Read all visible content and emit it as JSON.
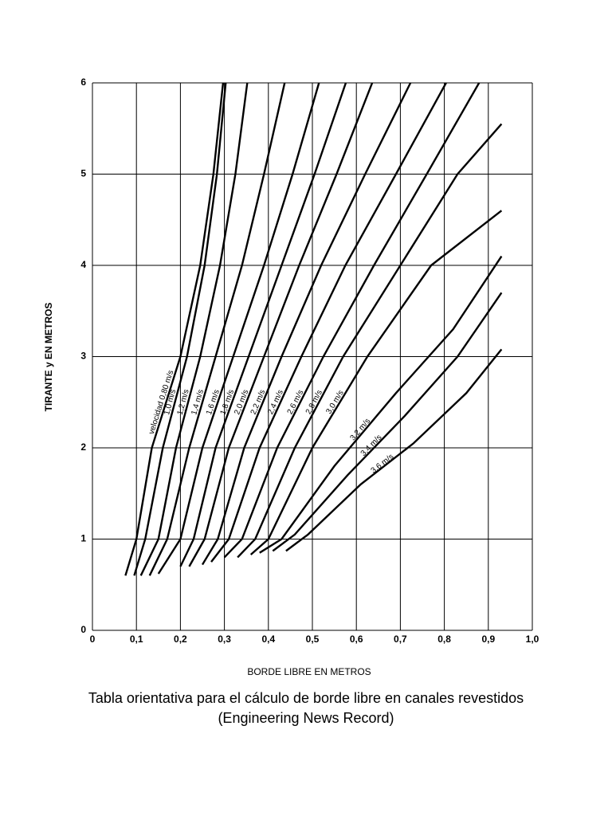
{
  "chart_data": {
    "type": "line",
    "x_label": "BORDE LIBRE EN METROS",
    "y_label": "TIRANTE  y  EN METROS",
    "caption": "Tabla orientativa para el cálculo de borde libre en canales revestidos",
    "source": "(Engineering News Record)",
    "xlim": [
      0,
      1.0
    ],
    "ylim": [
      0,
      6
    ],
    "xticks": [
      0,
      {
        "value": 0.1,
        "label": "0,1"
      },
      {
        "value": 0.2,
        "label": "0,2"
      },
      {
        "value": 0.3,
        "label": "0,3"
      },
      {
        "value": 0.4,
        "label": "0,4"
      },
      {
        "value": 0.5,
        "label": "0,5"
      },
      {
        "value": 0.6,
        "label": "0,6"
      },
      {
        "value": 0.7,
        "label": "0,7"
      },
      {
        "value": 0.8,
        "label": "0,8"
      },
      {
        "value": 0.9,
        "label": "0,9"
      },
      {
        "value": 1.0,
        "label": "1,0"
      }
    ],
    "yticks": [
      0,
      1,
      2,
      3,
      4,
      5,
      6
    ],
    "grid": true,
    "series": [
      {
        "name": "velocidad 0,80 m/s",
        "color": "#000000",
        "x": [
          0.075,
          0.1,
          0.135,
          0.2,
          0.245,
          0.275,
          0.297
        ],
        "values": [
          0.6,
          1,
          2,
          3,
          4,
          5,
          6
        ]
      },
      {
        "name": "1,0 m/s",
        "color": "#000000",
        "x": [
          0.095,
          0.12,
          0.16,
          0.215,
          0.255,
          0.283,
          0.303
        ],
        "values": [
          0.6,
          1,
          2,
          3,
          4,
          5,
          6
        ]
      },
      {
        "name": "1,2 m/s",
        "color": "#000000",
        "x": [
          0.11,
          0.15,
          0.19,
          0.245,
          0.29,
          0.325,
          0.352
        ],
        "values": [
          0.6,
          1,
          2,
          3,
          4,
          5,
          6
        ]
      },
      {
        "name": "1,4 m/s",
        "color": "#000000",
        "x": [
          0.13,
          0.17,
          0.22,
          0.28,
          0.34,
          0.39,
          0.437
        ],
        "values": [
          0.6,
          1,
          2,
          3,
          4,
          5,
          6
        ]
      },
      {
        "name": "1,6 m/s",
        "color": "#000000",
        "x": [
          0.15,
          0.2,
          0.25,
          0.32,
          0.39,
          0.455,
          0.515
        ],
        "values": [
          0.62,
          1,
          2,
          3,
          4,
          5,
          6
        ]
      },
      {
        "name": "1,8 m/s",
        "color": "#000000",
        "x": [
          0.2,
          0.23,
          0.28,
          0.355,
          0.43,
          0.505,
          0.576
        ],
        "values": [
          0.7,
          1,
          2,
          3,
          4,
          5,
          6
        ]
      },
      {
        "name": "2,0 m/s",
        "color": "#000000",
        "x": [
          0.22,
          0.255,
          0.31,
          0.39,
          0.47,
          0.555,
          0.636
        ],
        "values": [
          0.7,
          1,
          2,
          3,
          4,
          5,
          6
        ]
      },
      {
        "name": "2,2 m/s",
        "color": "#000000",
        "x": [
          0.25,
          0.285,
          0.345,
          0.43,
          0.52,
          0.62,
          0.723
        ],
        "values": [
          0.72,
          1,
          2,
          3,
          4,
          5,
          6
        ]
      },
      {
        "name": "2,4 m/s",
        "color": "#000000",
        "x": [
          0.27,
          0.31,
          0.38,
          0.475,
          0.575,
          0.69,
          0.804
        ],
        "values": [
          0.75,
          1,
          2,
          3,
          4,
          5,
          6
        ]
      },
      {
        "name": "2,6 m/s",
        "color": "#000000",
        "x": [
          0.3,
          0.34,
          0.42,
          0.525,
          0.64,
          0.76,
          0.879
        ],
        "values": [
          0.8,
          1,
          2,
          3,
          4,
          5,
          6
        ]
      },
      {
        "name": "2,8 m/s",
        "color": "#000000",
        "x": [
          0.33,
          0.37,
          0.46,
          0.57,
          0.7,
          0.83,
          0.93
        ],
        "values": [
          0.8,
          1,
          2,
          3,
          4,
          5,
          5.55
        ]
      },
      {
        "name": "3,0 m/s",
        "color": "#000000",
        "x": [
          0.36,
          0.4,
          0.5,
          0.625,
          0.77,
          0.93
        ],
        "values": [
          0.83,
          1,
          2,
          3,
          4,
          4.6
        ]
      },
      {
        "name": "3,2 m/s",
        "color": "#000000",
        "x": [
          0.38,
          0.43,
          0.55,
          0.69,
          0.82,
          0.93
        ],
        "values": [
          0.85,
          1,
          1.8,
          2.6,
          3.3,
          4.1
        ]
      },
      {
        "name": "3,4 m/s",
        "color": "#000000",
        "x": [
          0.41,
          0.46,
          0.58,
          0.71,
          0.83,
          0.93
        ],
        "values": [
          0.87,
          1.05,
          1.7,
          2.35,
          3.0,
          3.7
        ]
      },
      {
        "name": "3,6 m/s",
        "color": "#000000",
        "x": [
          0.44,
          0.49,
          0.61,
          0.73,
          0.85,
          0.93
        ],
        "values": [
          0.87,
          1.05,
          1.6,
          2.05,
          2.6,
          3.08
        ]
      }
    ]
  }
}
